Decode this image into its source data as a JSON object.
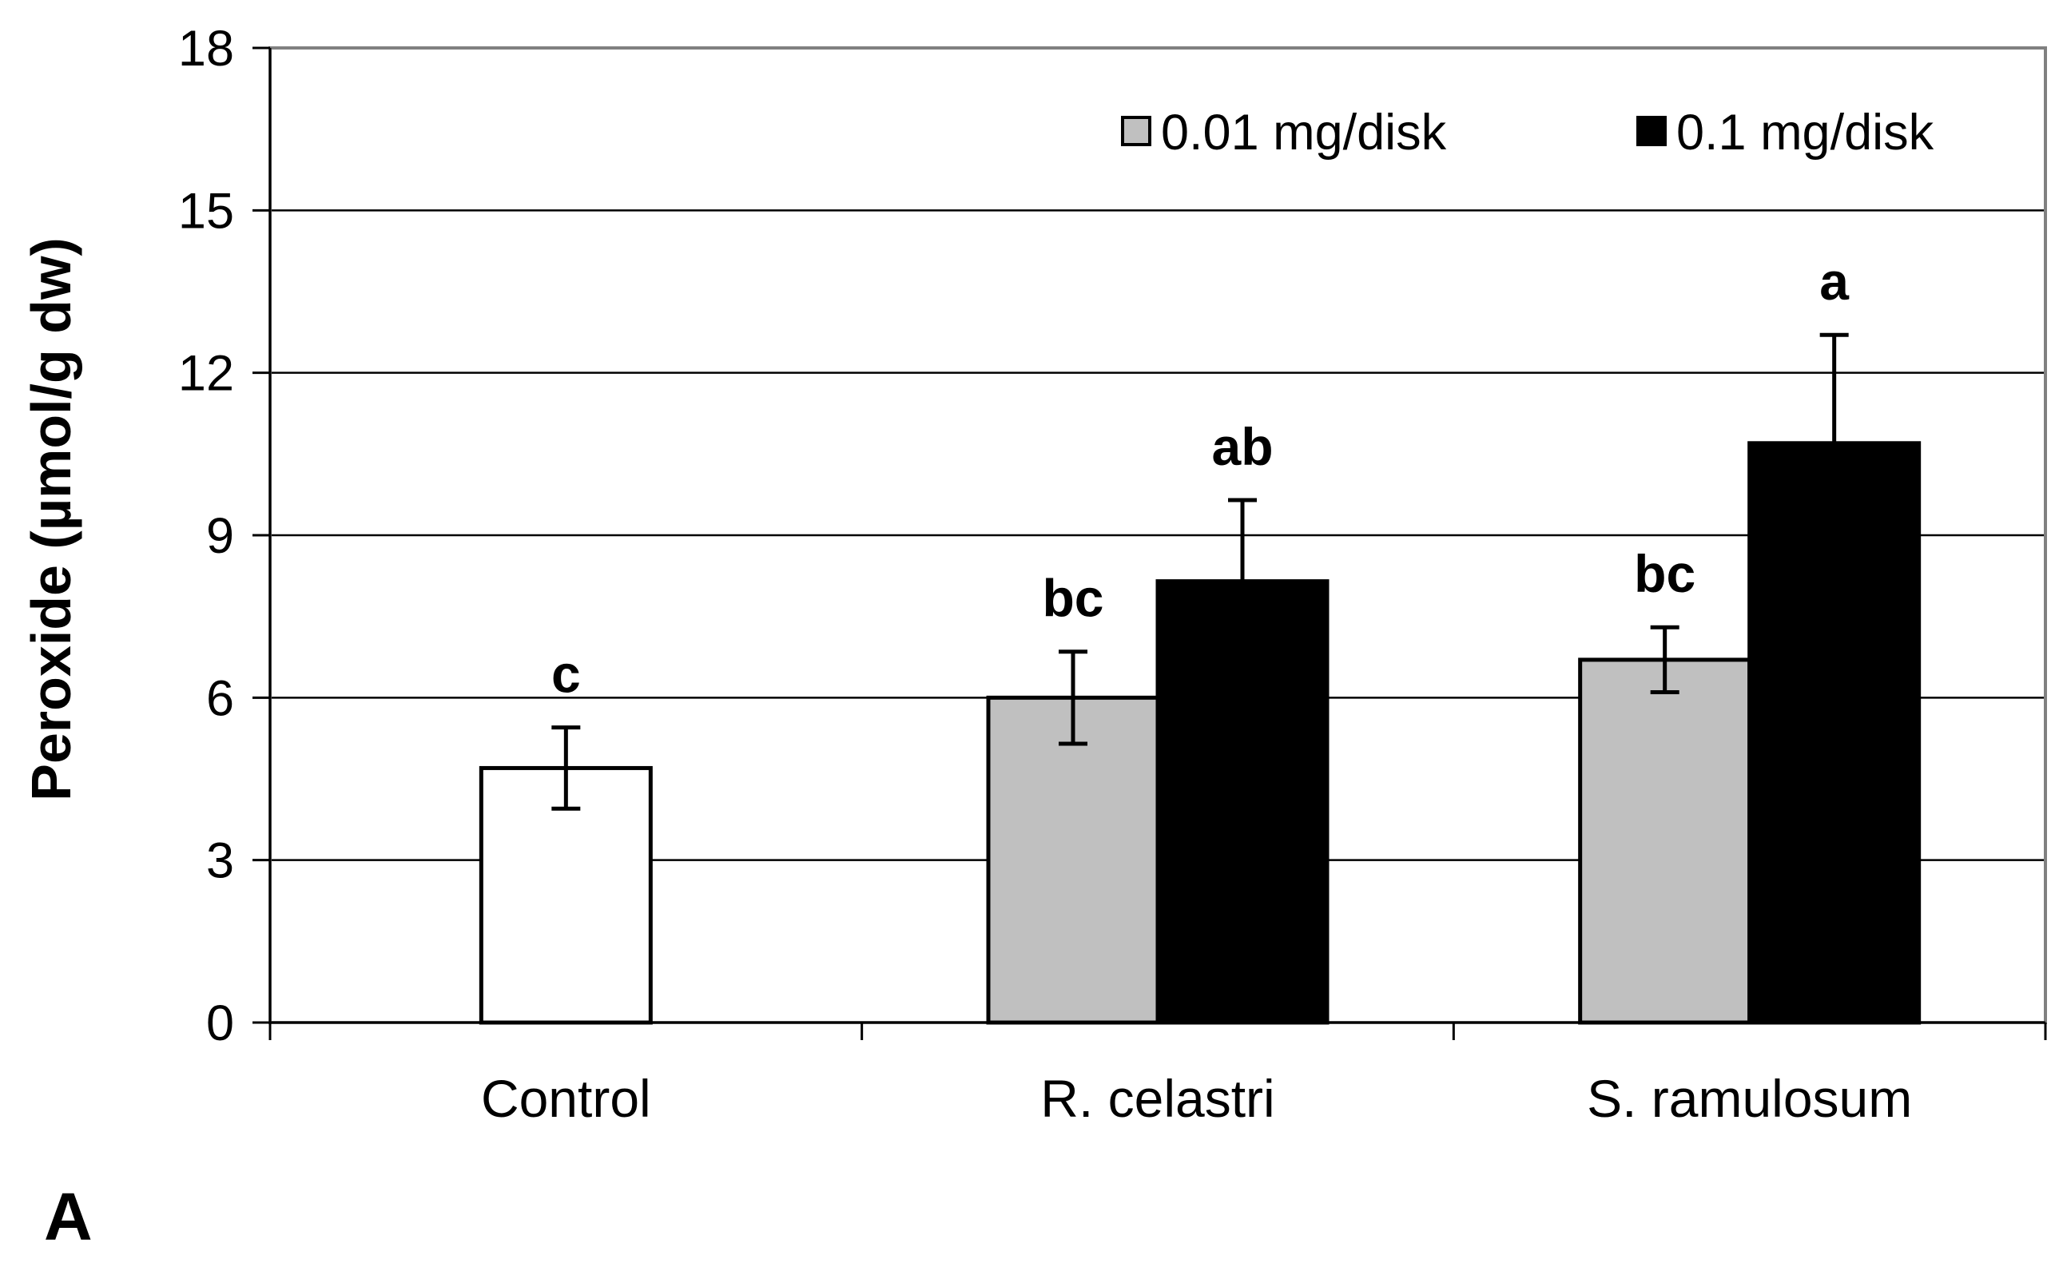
{
  "panel_label": "A",
  "chart_data": {
    "type": "bar",
    "title": "",
    "xlabel": "",
    "ylabel": "Peroxide (µmol/g dw)",
    "ylim": [
      0,
      18
    ],
    "yticks": [
      "0",
      "3",
      "6",
      "9",
      "12",
      "15",
      "18"
    ],
    "grid": true,
    "legend_position": "top-right",
    "categories": [
      "Control",
      "R. celastri",
      "S. ramulosum"
    ],
    "series": [
      {
        "name": "Control",
        "legend": false,
        "color": "#ffffff",
        "values": [
          4.7,
          null,
          null
        ],
        "errors": [
          0.75,
          null,
          null
        ],
        "labels": [
          "c",
          null,
          null
        ]
      },
      {
        "name": "0.01 mg/disk",
        "legend": true,
        "color": "#c0c0c0",
        "values": [
          null,
          6.0,
          6.7
        ],
        "errors": [
          null,
          0.85,
          0.6
        ],
        "labels": [
          null,
          "bc",
          "bc"
        ]
      },
      {
        "name": "0.1 mg/disk",
        "legend": true,
        "color": "#000000",
        "values": [
          null,
          8.15,
          10.7
        ],
        "errors": [
          null,
          1.5,
          2.0
        ],
        "labels": [
          null,
          "ab",
          "a"
        ]
      }
    ]
  }
}
